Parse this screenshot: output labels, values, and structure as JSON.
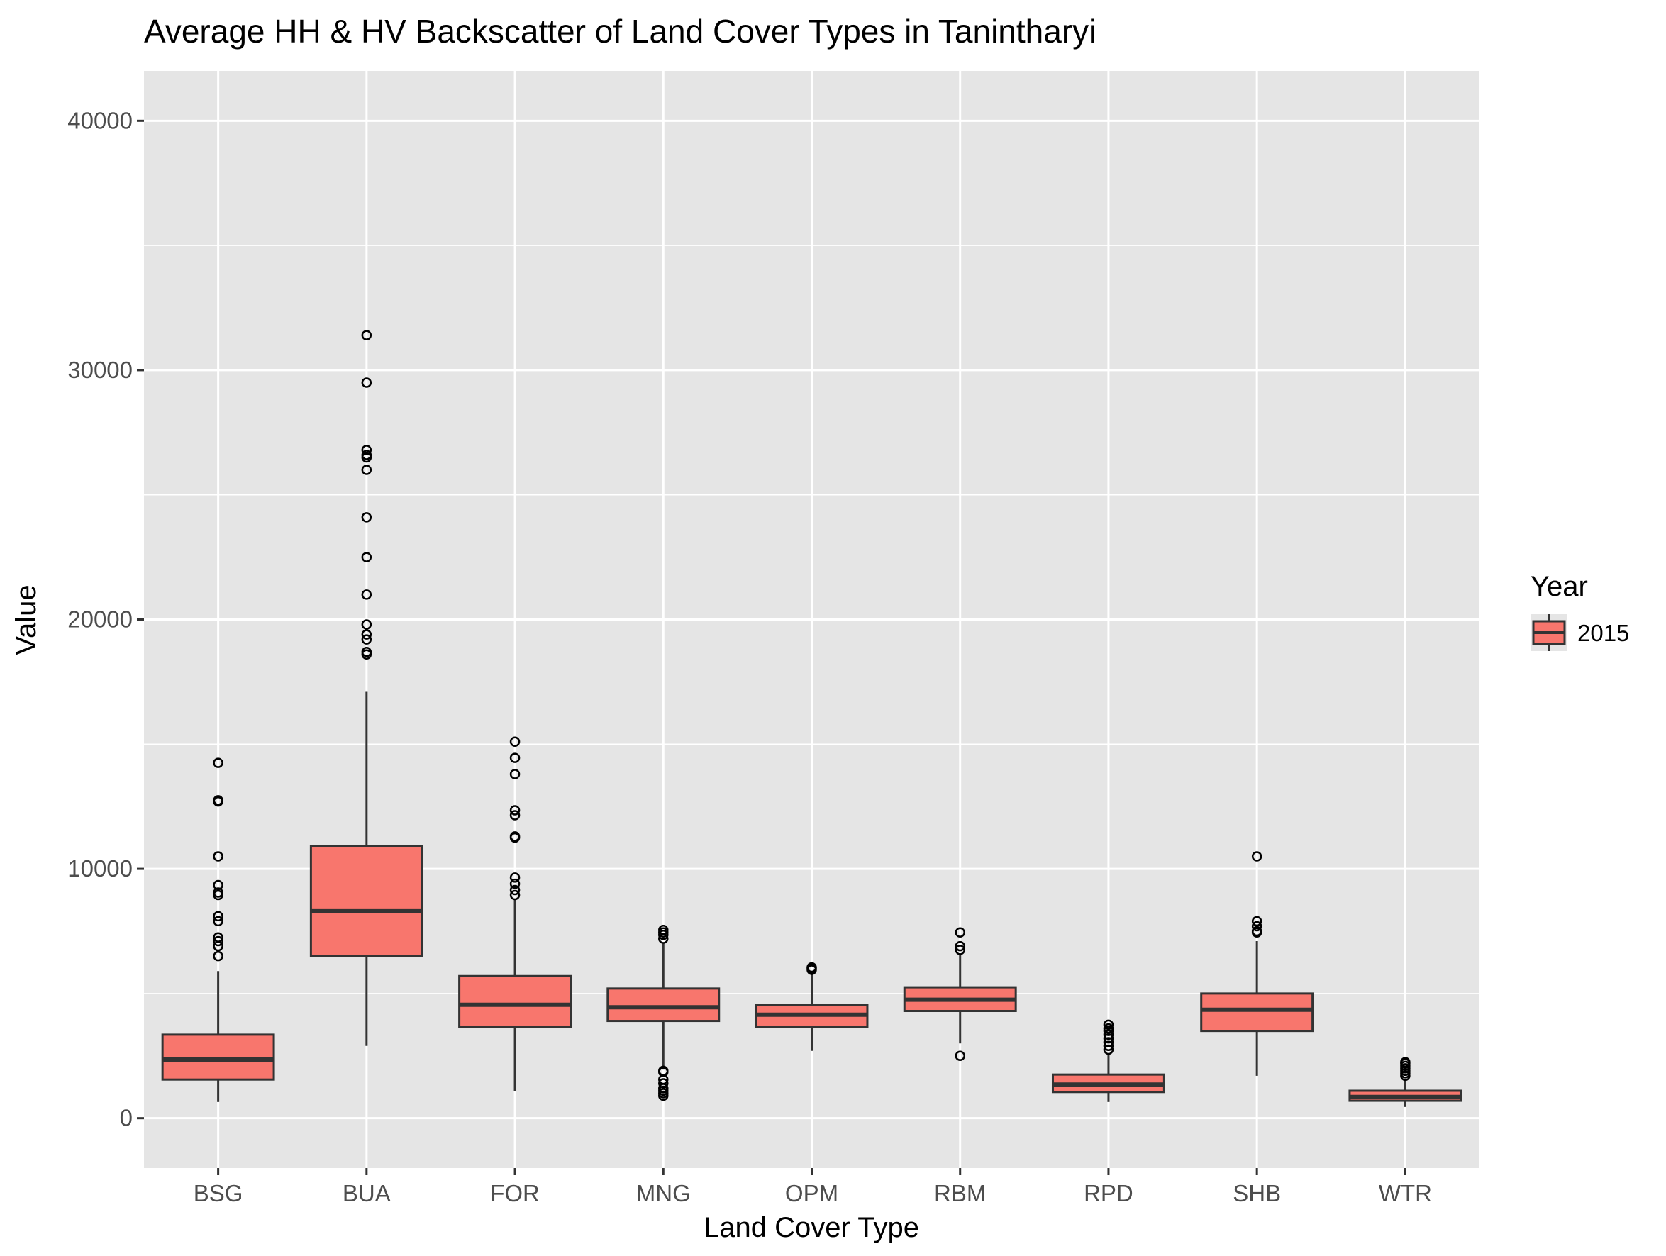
{
  "chart_data": {
    "type": "box",
    "title": "Average HH & HV Backscatter of Land Cover Types in Tanintharyi",
    "xlabel": "Land Cover Type",
    "ylabel": "Value",
    "ylim": [
      -2000,
      42000
    ],
    "yticks": [
      0,
      10000,
      20000,
      30000,
      40000
    ],
    "ytick_labels": [
      "0",
      "10000",
      "20000",
      "30000",
      "40000"
    ],
    "grid": true,
    "legend": {
      "title": "Year",
      "placement": "right",
      "entries": [
        "2015"
      ]
    },
    "fill_color": "#f8766d",
    "panel_color": "#e5e5e5",
    "categories": [
      "BSG",
      "BUA",
      "FOR",
      "MNG",
      "OPM",
      "RBM",
      "RPD",
      "SHB",
      "WTR"
    ],
    "series": [
      {
        "name": "2015",
        "boxes": [
          {
            "category": "BSG",
            "lower_whisker": 650,
            "q1": 1550,
            "median": 2350,
            "q3": 3350,
            "upper_whisker": 5900,
            "outliers": [
              6500,
              6900,
              7100,
              7250,
              7900,
              8100,
              8950,
              9050,
              9350,
              10500,
              12700,
              12750,
              14250
            ]
          },
          {
            "category": "BUA",
            "lower_whisker": 2900,
            "q1": 6500,
            "median": 8300,
            "q3": 10900,
            "upper_whisker": 17100,
            "outliers": [
              18600,
              18700,
              19200,
              19400,
              19800,
              21000,
              22500,
              24100,
              26000,
              26500,
              26600,
              26800,
              29500,
              31400
            ]
          },
          {
            "category": "FOR",
            "lower_whisker": 1100,
            "q1": 3650,
            "median": 4550,
            "q3": 5700,
            "upper_whisker": 8800,
            "outliers": [
              8950,
              9150,
              9400,
              9650,
              11250,
              11300,
              12150,
              12350,
              13800,
              14450,
              15100
            ]
          },
          {
            "category": "MNG",
            "lower_whisker": 1950,
            "q1": 3900,
            "median": 4450,
            "q3": 5200,
            "upper_whisker": 7000,
            "outliers": [
              900,
              1000,
              1100,
              1200,
              1400,
              1550,
              1850,
              1900,
              7200,
              7350,
              7450,
              7550
            ]
          },
          {
            "category": "OPM",
            "lower_whisker": 2700,
            "q1": 3650,
            "median": 4150,
            "q3": 4550,
            "upper_whisker": 5800,
            "outliers": [
              5950,
              6000,
              6050
            ]
          },
          {
            "category": "RBM",
            "lower_whisker": 3000,
            "q1": 4300,
            "median": 4750,
            "q3": 5250,
            "upper_whisker": 6600,
            "outliers": [
              2500,
              6750,
              6900,
              7450
            ]
          },
          {
            "category": "RPD",
            "lower_whisker": 650,
            "q1": 1050,
            "median": 1350,
            "q3": 1750,
            "upper_whisker": 2600,
            "outliers": [
              2750,
              2900,
              3050,
              3200,
              3350,
              3500,
              3600,
              3750
            ]
          },
          {
            "category": "SHB",
            "lower_whisker": 1700,
            "q1": 3500,
            "median": 4350,
            "q3": 5000,
            "upper_whisker": 7100,
            "outliers": [
              7450,
              7500,
              7700,
              7900,
              10500
            ]
          },
          {
            "category": "WTR",
            "lower_whisker": 450,
            "q1": 700,
            "median": 850,
            "q3": 1100,
            "upper_whisker": 1550,
            "outliers": [
              1700,
              1800,
              1900,
              2000,
              2100,
              2200,
              2250
            ]
          }
        ]
      }
    ]
  }
}
